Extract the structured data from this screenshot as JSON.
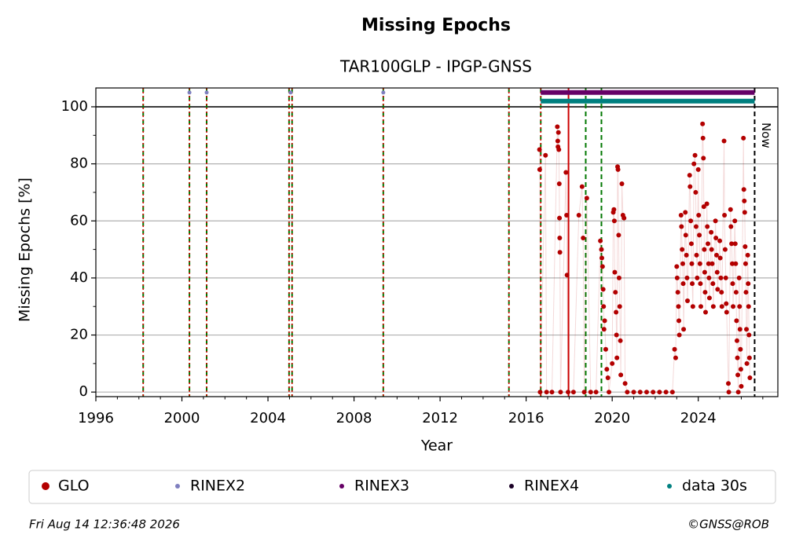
{
  "chart_data": {
    "type": "scatter",
    "title": "Missing Epochs",
    "subtitle": "TAR100GLP - IPGP-GNSS",
    "xlabel": "Year",
    "ylabel": "Missing Epochs [%]",
    "xlim": [
      1996,
      2027.7
    ],
    "ylim": [
      -1.6,
      106.6
    ],
    "xticks": [
      1996,
      2000,
      2004,
      2008,
      2012,
      2016,
      2020,
      2024
    ],
    "yticks": [
      0,
      20,
      40,
      60,
      80,
      100
    ],
    "x_minor_ticks": [
      1997,
      1998,
      1999,
      2001,
      2002,
      2003,
      2005,
      2006,
      2007,
      2009,
      2010,
      2011,
      2013,
      2014,
      2015,
      2017,
      2018,
      2019,
      2021,
      2022,
      2023,
      2025,
      2026,
      2027
    ],
    "y_minor_ticks": [
      10,
      30,
      50,
      70,
      90
    ],
    "grid": true,
    "hline": 100,
    "vlines": [
      {
        "x": 1998.2,
        "style": "green-red"
      },
      {
        "x": 2000.35,
        "style": "green-red"
      },
      {
        "x": 2001.15,
        "style": "green-red"
      },
      {
        "x": 2004.98,
        "style": "green-red"
      },
      {
        "x": 2005.12,
        "style": "green-red"
      },
      {
        "x": 2009.36,
        "style": "green-red"
      },
      {
        "x": 2015.2,
        "style": "green-red"
      },
      {
        "x": 2016.68,
        "style": "green-red"
      },
      {
        "x": 2017.97,
        "style": "red"
      },
      {
        "x": 2018.77,
        "style": "green"
      },
      {
        "x": 2019.5,
        "style": "green"
      }
    ],
    "now": {
      "x": 2026.62,
      "label": "Now"
    },
    "series": [
      {
        "name": "GLO",
        "color": "#b30000",
        "draw": "points-linked",
        "x": [
          2016.62,
          2016.63,
          2016.65,
          2016.9,
          2016.95,
          2017.2,
          2017.45,
          2017.47,
          2017.48,
          2017.5,
          2017.52,
          2017.54,
          2017.55,
          2017.56,
          2017.57,
          2017.6,
          2017.85,
          2017.88,
          2017.9,
          2017.95,
          2018.2,
          2018.45,
          2018.6,
          2018.65,
          2018.7,
          2018.82,
          2019.0,
          2019.25,
          2019.45,
          2019.5,
          2019.52,
          2019.55,
          2019.58,
          2019.6,
          2019.62,
          2019.65,
          2019.7,
          2019.75,
          2019.8,
          2019.85,
          2020.0,
          2020.05,
          2020.08,
          2020.1,
          2020.12,
          2020.15,
          2020.18,
          2020.2,
          2020.22,
          2020.25,
          2020.27,
          2020.3,
          2020.32,
          2020.35,
          2020.38,
          2020.4,
          2020.45,
          2020.5,
          2020.55,
          2020.6,
          2020.7,
          2021.0,
          2021.3,
          2021.6,
          2021.9,
          2022.2,
          2022.5,
          2022.8,
          2022.9,
          2022.95,
          2023.0,
          2023.02,
          2023.05,
          2023.08,
          2023.1,
          2023.12,
          2023.2,
          2023.22,
          2023.25,
          2023.28,
          2023.3,
          2023.32,
          2023.4,
          2023.42,
          2023.45,
          2023.48,
          2023.5,
          2023.6,
          2023.62,
          2023.65,
          2023.68,
          2023.7,
          2023.72,
          2023.75,
          2023.8,
          2023.85,
          2023.88,
          2023.9,
          2023.92,
          2023.95,
          2024.0,
          2024.02,
          2024.05,
          2024.08,
          2024.1,
          2024.12,
          2024.2,
          2024.22,
          2024.24,
          2024.26,
          2024.28,
          2024.3,
          2024.32,
          2024.34,
          2024.4,
          2024.42,
          2024.45,
          2024.48,
          2024.5,
          2024.52,
          2024.6,
          2024.62,
          2024.65,
          2024.68,
          2024.7,
          2024.8,
          2024.82,
          2024.85,
          2024.88,
          2024.9,
          2025.0,
          2025.02,
          2025.05,
          2025.08,
          2025.1,
          2025.2,
          2025.22,
          2025.25,
          2025.28,
          2025.3,
          2025.32,
          2025.4,
          2025.42,
          2025.5,
          2025.52,
          2025.55,
          2025.58,
          2025.6,
          2025.62,
          2025.7,
          2025.72,
          2025.74,
          2025.76,
          2025.78,
          2025.8,
          2025.82,
          2025.84,
          2025.86,
          2025.9,
          2025.92,
          2025.94,
          2025.96,
          2025.98,
          2026.0,
          2026.1,
          2026.12,
          2026.14,
          2026.16,
          2026.18,
          2026.2,
          2026.22,
          2026.24,
          2026.26,
          2026.3,
          2026.32,
          2026.34,
          2026.36,
          2026.38,
          2026.4
        ],
        "values": [
          85,
          78,
          0,
          83,
          0,
          0,
          93,
          88,
          86,
          91,
          85,
          73,
          61,
          54,
          49,
          0,
          77,
          62,
          41,
          0,
          0,
          62,
          72,
          54,
          0,
          68,
          0,
          0,
          53,
          50,
          47,
          44,
          36,
          30,
          22,
          25,
          15,
          8,
          5,
          0,
          10,
          63,
          64,
          60,
          42,
          35,
          28,
          20,
          12,
          79,
          78,
          55,
          40,
          30,
          18,
          6,
          73,
          62,
          61,
          3,
          0,
          0,
          0,
          0,
          0,
          0,
          0,
          0,
          15,
          12,
          44,
          40,
          35,
          30,
          25,
          20,
          62,
          58,
          50,
          45,
          38,
          22,
          63,
          55,
          48,
          40,
          32,
          76,
          72,
          60,
          52,
          45,
          38,
          30,
          80,
          83,
          70,
          58,
          48,
          40,
          78,
          62,
          55,
          45,
          38,
          30,
          94,
          89,
          82,
          65,
          50,
          42,
          35,
          28,
          66,
          58,
          52,
          45,
          40,
          33,
          56,
          50,
          45,
          38,
          30,
          60,
          54,
          48,
          42,
          36,
          53,
          47,
          40,
          35,
          30,
          88,
          62,
          50,
          40,
          31,
          28,
          3,
          0,
          64,
          58,
          52,
          45,
          38,
          30,
          60,
          52,
          45,
          35,
          25,
          18,
          12,
          6,
          0,
          40,
          30,
          22,
          15,
          8,
          2,
          89,
          71,
          67,
          63,
          51,
          45,
          35,
          22,
          10,
          48,
          38,
          30,
          20,
          12,
          5
        ]
      },
      {
        "name": "RINEX2",
        "color": "#7f7fbf",
        "draw": "points",
        "x": [
          2000.35,
          2001.15,
          2005.05,
          2009.36
        ],
        "values": [
          105,
          105,
          105,
          105
        ]
      },
      {
        "name": "RINEX3",
        "color": "#660066",
        "draw": "band",
        "x": [
          2016.68,
          2026.62
        ],
        "values": [
          105,
          105
        ]
      },
      {
        "name": "RINEX4",
        "color": "#1a0026",
        "draw": "points",
        "x": [],
        "values": []
      },
      {
        "name": "data 30s",
        "color": "#008080",
        "draw": "band",
        "x": [
          2016.68,
          2026.62
        ],
        "values": [
          102,
          102
        ]
      }
    ],
    "footer_left": "Fri Aug 14 12:36:48 2026",
    "footer_right": "©GNSS@ROB"
  }
}
